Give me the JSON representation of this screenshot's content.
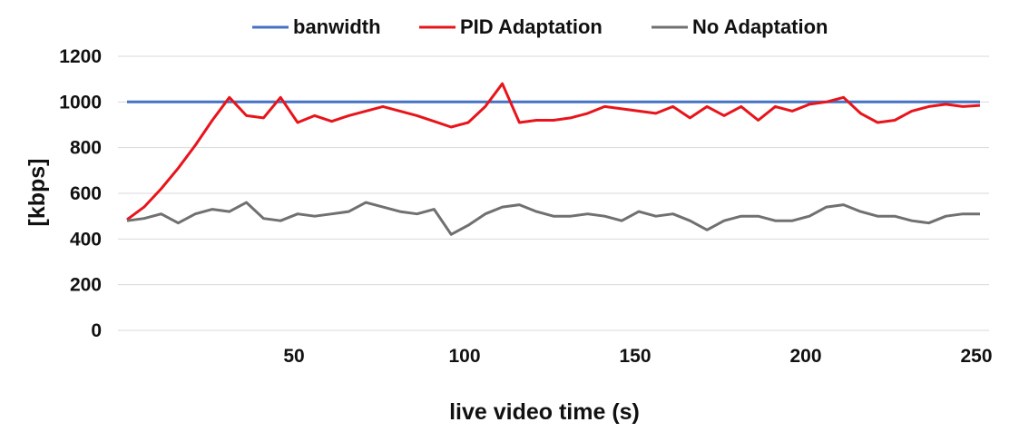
{
  "chart_data": {
    "type": "line",
    "title": "",
    "xlabel": "live video time (s)",
    "ylabel": "[kbps]",
    "xlim": [
      0,
      250
    ],
    "ylim": [
      0,
      1200
    ],
    "x_ticks": [
      50,
      100,
      150,
      200,
      250
    ],
    "y_ticks": [
      0,
      200,
      400,
      600,
      800,
      1000,
      1200
    ],
    "grid": "horizontal",
    "legend_position": "top",
    "x": [
      0,
      5,
      10,
      15,
      20,
      25,
      30,
      35,
      40,
      45,
      50,
      55,
      60,
      65,
      70,
      75,
      80,
      85,
      90,
      95,
      100,
      105,
      110,
      115,
      120,
      125,
      130,
      135,
      140,
      145,
      150,
      155,
      160,
      165,
      170,
      175,
      180,
      185,
      190,
      195,
      200,
      205,
      210,
      215,
      220,
      225,
      230,
      235,
      240,
      245,
      250
    ],
    "series": [
      {
        "name": "banwidth",
        "color": "#4472C4",
        "values": [
          1000,
          1000,
          1000,
          1000,
          1000,
          1000,
          1000,
          1000,
          1000,
          1000,
          1000,
          1000,
          1000,
          1000,
          1000,
          1000,
          1000,
          1000,
          1000,
          1000,
          1000,
          1000,
          1000,
          1000,
          1000,
          1000,
          1000,
          1000,
          1000,
          1000,
          1000,
          1000,
          1000,
          1000,
          1000,
          1000,
          1000,
          1000,
          1000,
          1000,
          1000,
          1000,
          1000,
          1000,
          1000,
          1000,
          1000,
          1000,
          1000,
          1000,
          1000
        ]
      },
      {
        "name": "PID Adaptation",
        "color": "#E8141C",
        "values": [
          485,
          540,
          620,
          710,
          810,
          920,
          1020,
          940,
          930,
          1020,
          910,
          940,
          915,
          940,
          960,
          980,
          960,
          940,
          915,
          890,
          910,
          980,
          1080,
          910,
          920,
          920,
          930,
          950,
          980,
          970,
          960,
          950,
          980,
          930,
          980,
          940,
          980,
          920,
          980,
          960,
          990,
          1000,
          1020,
          950,
          910,
          920,
          960,
          980,
          990,
          980,
          985
        ]
      },
      {
        "name": "No Adaptation",
        "color": "#707070",
        "values": [
          480,
          490,
          510,
          470,
          510,
          530,
          520,
          560,
          490,
          480,
          510,
          500,
          510,
          520,
          560,
          540,
          520,
          510,
          530,
          420,
          460,
          510,
          540,
          550,
          520,
          500,
          500,
          510,
          500,
          480,
          520,
          500,
          510,
          480,
          440,
          480,
          500,
          500,
          480,
          480,
          500,
          540,
          550,
          520,
          500,
          500,
          480,
          470,
          500,
          510,
          510
        ]
      }
    ]
  }
}
